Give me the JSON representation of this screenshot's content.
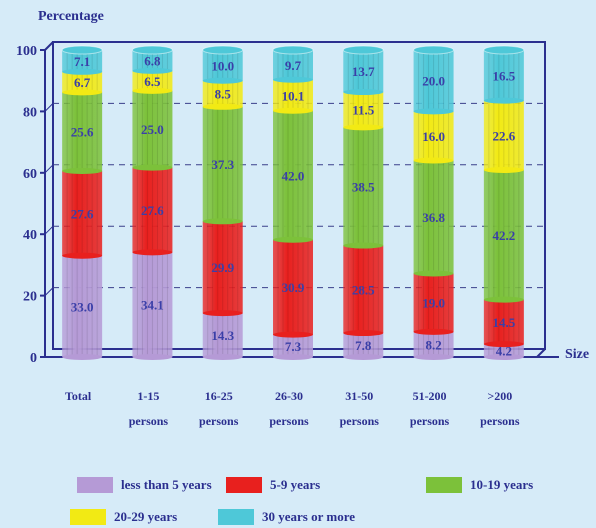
{
  "chart_data": {
    "type": "bar",
    "stacked": true,
    "title": "",
    "ylabel": "Percentage",
    "xlabel": "Size",
    "ylim": [
      0,
      100
    ],
    "yticks": [
      "0",
      "20",
      "40",
      "60",
      "80",
      "100"
    ],
    "categories": [
      [
        "Total",
        ""
      ],
      [
        "1-15",
        "persons"
      ],
      [
        "16-25",
        "persons"
      ],
      [
        "26-30",
        "persons"
      ],
      [
        "31-50",
        "persons"
      ],
      [
        "51-200",
        "persons"
      ],
      [
        ">200",
        "persons"
      ]
    ],
    "series": [
      {
        "name": "less than 5 years",
        "color": "#b59ad6",
        "values": [
          33.0,
          34.1,
          14.3,
          7.3,
          7.8,
          8.2,
          4.2
        ],
        "labels": [
          "33.0",
          "34.1",
          "14.3",
          "7.3",
          "7.8",
          "8.2",
          "4.2"
        ]
      },
      {
        "name": "5-9 years",
        "color": "#e8201e",
        "values": [
          27.6,
          27.6,
          29.9,
          30.9,
          28.5,
          19.0,
          14.5
        ],
        "labels": [
          "27.6",
          "27.6",
          "29.9",
          "30.9",
          "28.5",
          "19.0",
          "14.5"
        ]
      },
      {
        "name": "10-19 years",
        "color": "#7cc13a",
        "values": [
          25.6,
          25.0,
          37.3,
          42.0,
          38.5,
          36.8,
          42.2
        ],
        "labels": [
          "25.6",
          "25.0",
          "37.3",
          "42.0",
          "38.5",
          "36.8",
          "42.2"
        ]
      },
      {
        "name": "20-29 years",
        "color": "#f2ea14",
        "values": [
          6.7,
          6.5,
          8.5,
          10.1,
          11.5,
          16.0,
          22.6
        ],
        "labels": [
          "6.7",
          "6.5",
          "8.5",
          "10.1",
          "11.5",
          "16.0",
          "22.6"
        ]
      },
      {
        "name": "30 years or more",
        "color": "#4ec8d8",
        "values": [
          7.1,
          6.8,
          10.0,
          9.7,
          13.7,
          20.0,
          16.5
        ],
        "labels": [
          "7.1",
          "6.8",
          "10.0",
          "9.7",
          "13.7",
          "20.0",
          "16.5"
        ]
      }
    ],
    "grid": "dashed horizontal",
    "legend_position": "bottom"
  }
}
